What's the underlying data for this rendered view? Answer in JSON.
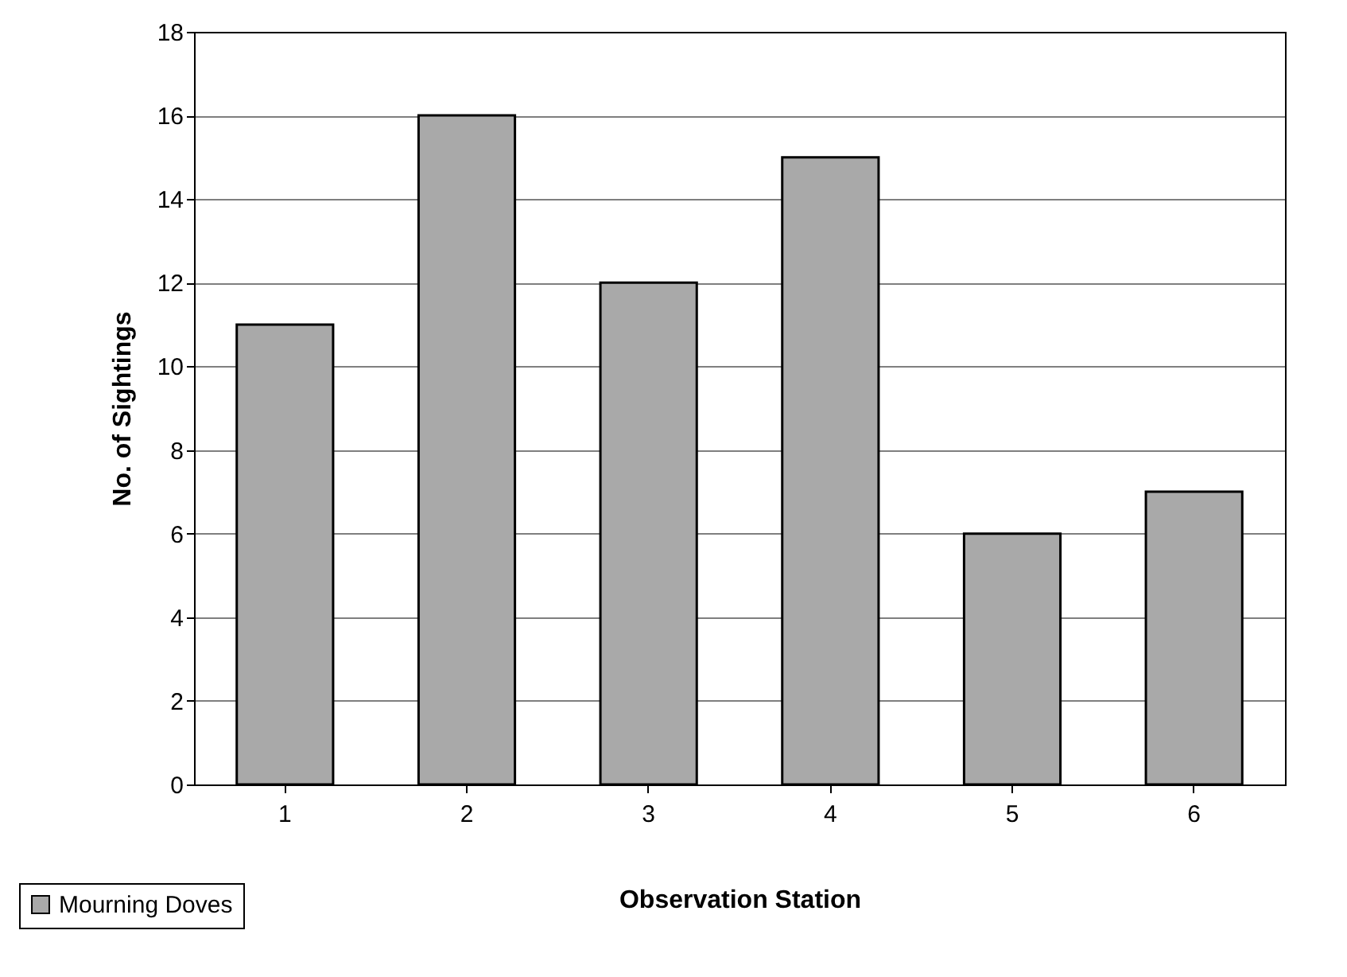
{
  "chart_data": {
    "type": "bar",
    "xlabel": "Observation Station",
    "ylabel": "No. of Sightings",
    "categories": [
      "1",
      "2",
      "3",
      "4",
      "5",
      "6"
    ],
    "series": [
      {
        "name": "Mourning Doves",
        "color": "#a9a9a9",
        "values": [
          11,
          16,
          12,
          15,
          6,
          7
        ]
      }
    ],
    "ylim": [
      0,
      18
    ],
    "yticks": [
      0,
      2,
      4,
      6,
      8,
      10,
      12,
      14,
      16,
      18
    ],
    "grid": "y",
    "legend": "bottom left"
  }
}
